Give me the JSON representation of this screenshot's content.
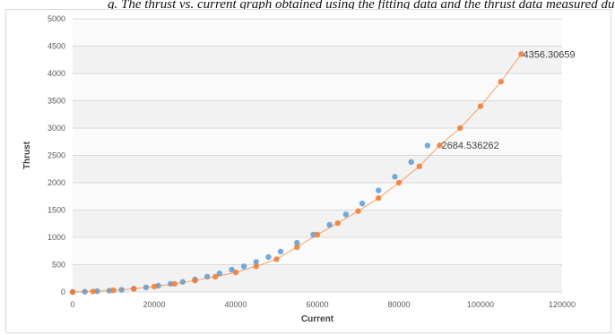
{
  "caption": "g. The thrust vs. current graph obtained using the fitting data and the thrust data measured during the test",
  "chart_data": {
    "type": "scatter",
    "xlabel": "Current",
    "ylabel": "Thrust",
    "xlim": [
      0,
      120000
    ],
    "ylim": [
      0,
      5000
    ],
    "xticks": [
      0,
      20000,
      40000,
      60000,
      80000,
      100000,
      120000
    ],
    "yticks": [
      0,
      500,
      1000,
      1500,
      2000,
      2500,
      3000,
      3500,
      4000,
      4500,
      5000
    ],
    "grid": "horizontal",
    "legend": "none",
    "series": [
      {
        "color": "#5b9bd5",
        "style": "markers",
        "x": [
          0,
          3000,
          6000,
          9000,
          12000,
          15000,
          18000,
          21000,
          24000,
          27000,
          30000,
          33000,
          36000,
          39000,
          42000,
          45000,
          48000,
          51000,
          55000,
          59000,
          63000,
          67000,
          71000,
          75000,
          79000,
          83000,
          87000
        ],
        "y": [
          0,
          5,
          15,
          25,
          40,
          60,
          85,
          115,
          150,
          185,
          230,
          280,
          340,
          410,
          470,
          550,
          640,
          740,
          900,
          1050,
          1230,
          1420,
          1620,
          1860,
          2110,
          2380,
          2680
        ]
      },
      {
        "color": "#ed7d31",
        "style": "line-markers",
        "x": [
          0,
          5000,
          10000,
          15000,
          20000,
          25000,
          30000,
          35000,
          40000,
          45000,
          50000,
          55000,
          60000,
          65000,
          70000,
          75000,
          80000,
          85000,
          90000,
          95000,
          100000,
          105000,
          110000
        ],
        "y": [
          0,
          10,
          30,
          60,
          100,
          150,
          210,
          280,
          360,
          470,
          600,
          820,
          1050,
          1260,
          1480,
          1720,
          2000,
          2300,
          2684.536262,
          3000,
          3400,
          3850,
          4356.30659
        ]
      }
    ],
    "data_labels": [
      {
        "x": 90000,
        "y": 2684.536262,
        "text": "2684.536262"
      },
      {
        "x": 110000,
        "y": 4356.30659,
        "text": "4356.30659"
      }
    ]
  }
}
